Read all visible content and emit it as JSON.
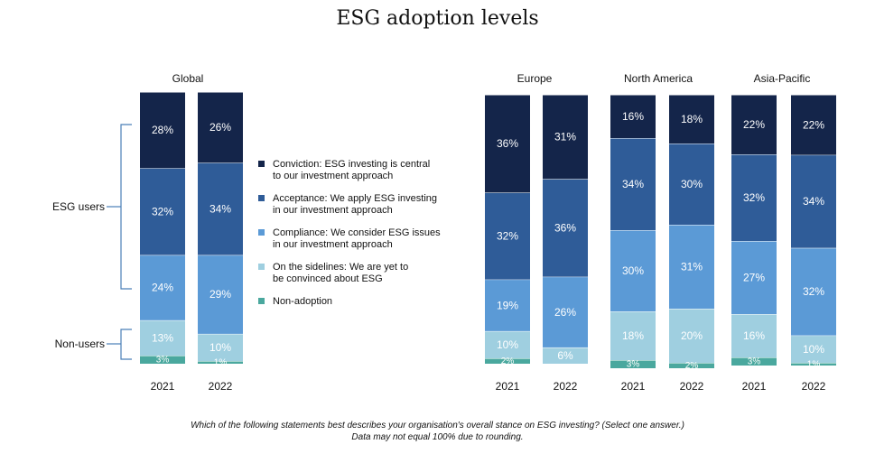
{
  "title": "ESG adoption levels",
  "footnote": {
    "line1": "Which of the following statements best describes your organisation's overall stance on ESG investing? (Select one answer.)",
    "line2": "Data may not equal 100% due to rounding."
  },
  "groups": {
    "esg_users": "ESG users",
    "non_users": "Non-users"
  },
  "colors": {
    "Conviction": "#14254a",
    "Acceptance": "#2f5c98",
    "Compliance": "#5b9ad6",
    "Sidelines": "#9fcfe0",
    "Non-adoption": "#4aa89e"
  },
  "legend": [
    {
      "key": "Conviction",
      "line1": "Conviction: ESG investing is central",
      "line2": "to our investment approach"
    },
    {
      "key": "Acceptance",
      "line1": "Acceptance: We apply ESG investing",
      "line2": "in our investment approach"
    },
    {
      "key": "Compliance",
      "line1": "Compliance: We consider ESG issues",
      "line2": "in our investment approach"
    },
    {
      "key": "Sidelines",
      "line1": "On the sidelines: We are yet to",
      "line2": "be convinced about ESG"
    },
    {
      "key": "Non-adoption",
      "line1": "Non-adoption",
      "line2": ""
    }
  ],
  "chart_data": {
    "type": "bar",
    "stacked": true,
    "unit": "%",
    "series_order": [
      "Non-adoption",
      "Sidelines",
      "Compliance",
      "Acceptance",
      "Conviction"
    ],
    "panels": [
      {
        "title": "Global",
        "bars": [
          {
            "x": "2021",
            "values": {
              "Conviction": 28,
              "Acceptance": 32,
              "Compliance": 24,
              "Sidelines": 13,
              "Non-adoption": 3
            }
          },
          {
            "x": "2022",
            "values": {
              "Conviction": 26,
              "Acceptance": 34,
              "Compliance": 29,
              "Sidelines": 10,
              "Non-adoption": 1
            }
          }
        ]
      },
      {
        "title": "Europe",
        "bars": [
          {
            "x": "2021",
            "values": {
              "Conviction": 36,
              "Acceptance": 32,
              "Compliance": 19,
              "Sidelines": 10,
              "Non-adoption": 2
            }
          },
          {
            "x": "2022",
            "values": {
              "Conviction": 31,
              "Acceptance": 36,
              "Compliance": 26,
              "Sidelines": 6,
              "Non-adoption": 0
            }
          }
        ]
      },
      {
        "title": "North America",
        "bars": [
          {
            "x": "2021",
            "values": {
              "Conviction": 16,
              "Acceptance": 34,
              "Compliance": 30,
              "Sidelines": 18,
              "Non-adoption": 3
            }
          },
          {
            "x": "2022",
            "values": {
              "Conviction": 18,
              "Acceptance": 30,
              "Compliance": 31,
              "Sidelines": 20,
              "Non-adoption": 2
            }
          }
        ]
      },
      {
        "title": "Asia-Pacific",
        "bars": [
          {
            "x": "2021",
            "values": {
              "Conviction": 22,
              "Acceptance": 32,
              "Compliance": 27,
              "Sidelines": 16,
              "Non-adoption": 3
            }
          },
          {
            "x": "2022",
            "values": {
              "Conviction": 22,
              "Acceptance": 34,
              "Compliance": 32,
              "Sidelines": 10,
              "Non-adoption": 1
            }
          }
        ]
      }
    ]
  }
}
